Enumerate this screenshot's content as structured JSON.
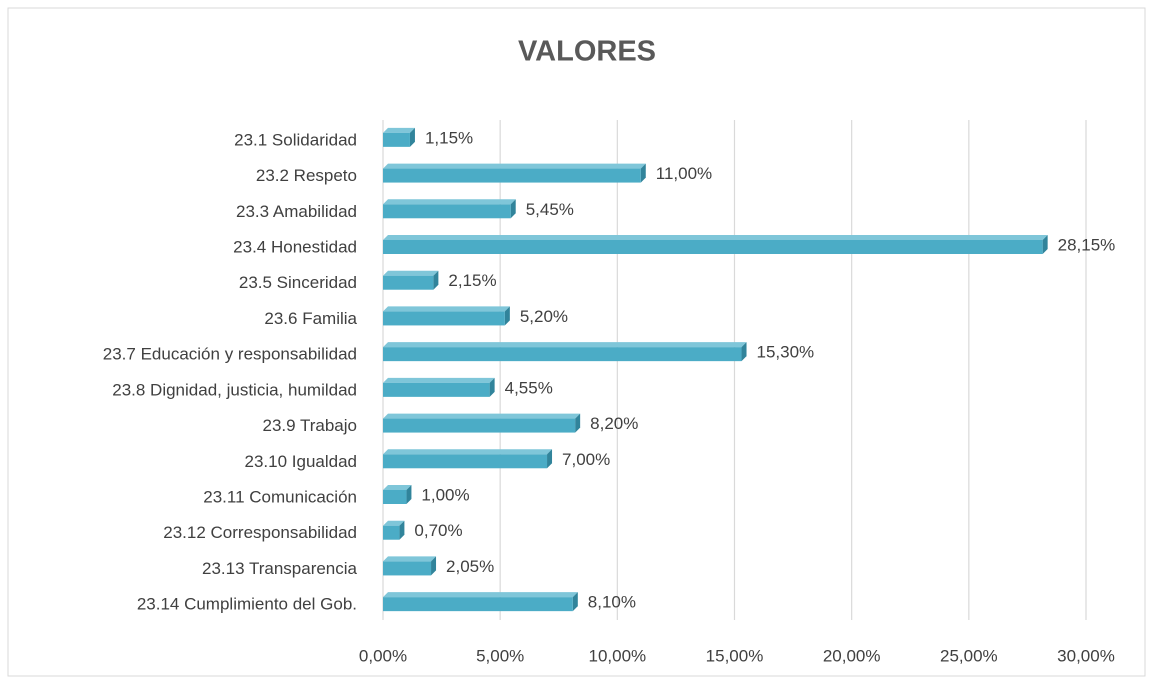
{
  "chart_data": {
    "type": "bar",
    "orientation": "horizontal",
    "title": "VALORES",
    "categories": [
      "23.1 Solidaridad",
      "23.2 Respeto",
      "23.3 Amabilidad",
      "23.4 Honestidad",
      "23.5 Sinceridad",
      "23.6 Familia",
      "23.7 Educación y responsabilidad",
      "23.8 Dignidad, justicia, humildad",
      "23.9 Trabajo",
      "23.10 Igualdad",
      "23.11 Comunicación",
      "23.12 Corresponsabilidad",
      "23.13 Transparencia",
      "23.14 Cumplimiento del Gob."
    ],
    "values": [
      1.15,
      11.0,
      5.45,
      28.15,
      2.15,
      5.2,
      15.3,
      4.55,
      8.2,
      7.0,
      1.0,
      0.7,
      2.05,
      8.1
    ],
    "value_labels": [
      "1,15%",
      "11,00%",
      "5,45%",
      "28,15%",
      "2,15%",
      "5,20%",
      "15,30%",
      "4,55%",
      "8,20%",
      "7,00%",
      "1,00%",
      "0,70%",
      "2,05%",
      "8,10%"
    ],
    "color": "#4bacc6",
    "xlim": [
      0,
      30
    ],
    "xticks": [
      {
        "value": 0,
        "label": "0,00%"
      },
      {
        "value": 5,
        "label": "5,00%"
      },
      {
        "value": 10,
        "label": "10,00%"
      },
      {
        "value": 15,
        "label": "15,00%"
      },
      {
        "value": 20,
        "label": "20,00%"
      },
      {
        "value": 25,
        "label": "25,00%"
      },
      {
        "value": 30,
        "label": "30,00%"
      }
    ],
    "grid": true
  }
}
